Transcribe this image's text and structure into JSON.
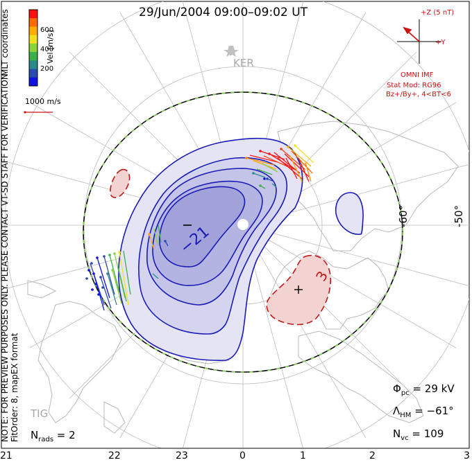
{
  "header": {
    "title": "29/Jun/2004 09:00–09:02 UT"
  },
  "notes": {
    "coords": "MLT coordinates",
    "preview": "NOTE: FOR PREVIEW PURPOSES ONLY. PLEASE CONTACT VT-SD STAFF FOR VERIFICATION.",
    "fit": "FitOrder: 8, mapEX format"
  },
  "colorbar": {
    "label": "Vel [m/s]",
    "ticks": [
      "600",
      "400",
      "200"
    ],
    "colors": [
      "#ff1010",
      "#ff6a00",
      "#ffae00",
      "#f0e020",
      "#8ad23a",
      "#3ab04a",
      "#2a8a8a",
      "#2a4ab0",
      "#1010e0"
    ]
  },
  "scale": {
    "label": "1000 m/s"
  },
  "imf": {
    "z_label": "+Z (5 nT)",
    "y_label": "+Y",
    "source": "OMNI IMF",
    "model": "Stat Mod: RG96",
    "condition": "Bz+/By+, 4<BT<6"
  },
  "stations": {
    "ker": "KER",
    "tig": "TIG"
  },
  "latitudes": {
    "lat60": "-60°",
    "lat50": "-50°"
  },
  "contours": {
    "min_label": "−21",
    "max_label": "3",
    "min_marker": "−",
    "max_marker": "+"
  },
  "stats": {
    "phi_sym": "Φ",
    "phi_sub": "pc",
    "phi_val": " = 29 kV",
    "lam_sym": "Λ",
    "lam_sub": "HM",
    "lam_val": " = −61°",
    "nvc_sym": "N",
    "nvc_sub": "vc",
    "nvc_val": " = 109",
    "nrads_sym": "N",
    "nrads_sub": "rads",
    "nrads_val": " = 2"
  },
  "mlt_axis": [
    "21",
    "22",
    "23",
    "0",
    "1",
    "2",
    "3"
  ],
  "colors": {
    "potential_line": "#1a1ab4",
    "positive_line": "#c01818",
    "neg_fill": "#9a9ae0",
    "pos_fill": "#f0b8b8",
    "hmb_dash": "#7ed04a",
    "grid": "#b8b8b8",
    "imf": "#d01010"
  }
}
